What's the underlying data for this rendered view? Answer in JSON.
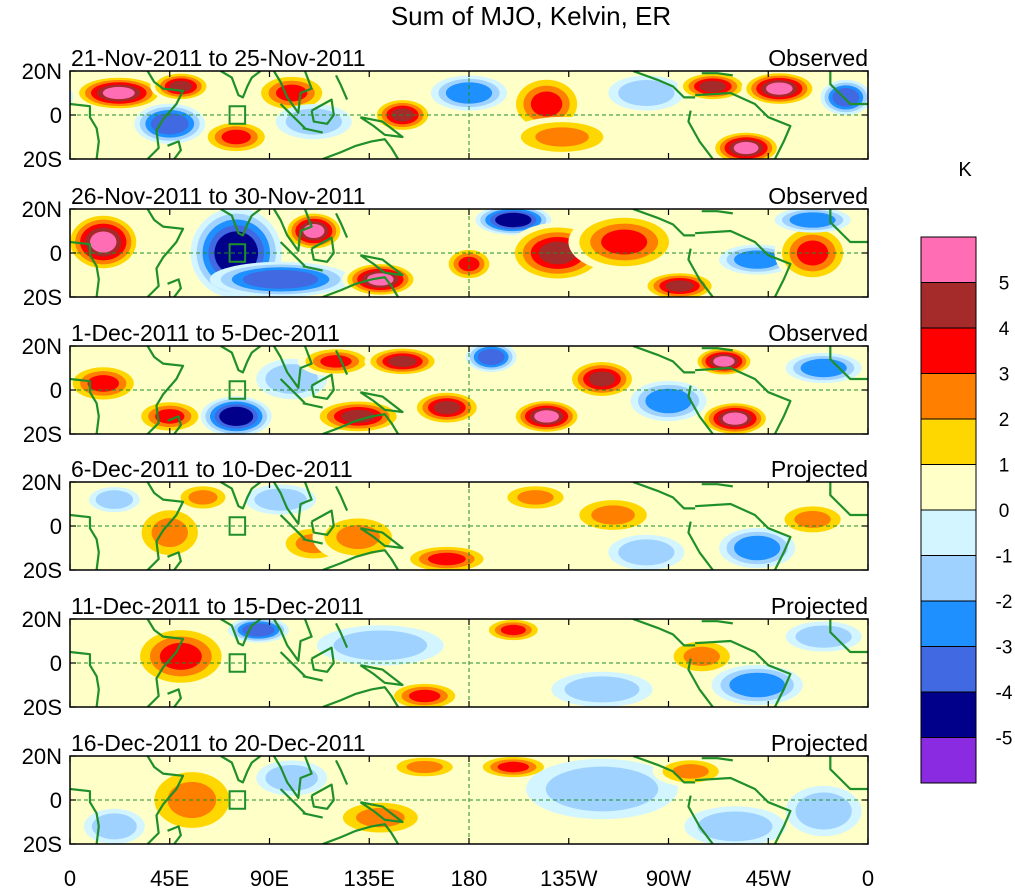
{
  "chart_data": {
    "type": "heatmap",
    "title": "Sum of MJO, Kelvin, ER",
    "panels": [
      {
        "date_range": "21-Nov-2011 to 25-Nov-2011",
        "status": "Observed"
      },
      {
        "date_range": "26-Nov-2011 to 30-Nov-2011",
        "status": "Observed"
      },
      {
        "date_range": "1-Dec-2011 to 5-Dec-2011",
        "status": "Observed"
      },
      {
        "date_range": "6-Dec-2011 to 10-Dec-2011",
        "status": "Projected"
      },
      {
        "date_range": "11-Dec-2011 to 15-Dec-2011",
        "status": "Projected"
      },
      {
        "date_range": "16-Dec-2011 to 20-Dec-2011",
        "status": "Projected"
      }
    ],
    "x_ticks": [
      "0",
      "45E",
      "90E",
      "135E",
      "180",
      "135W",
      "90W",
      "45W",
      "0"
    ],
    "x_tick_values": [
      0,
      45,
      90,
      135,
      180,
      225,
      270,
      315,
      360
    ],
    "y_ticks": [
      "20N",
      "0",
      "20S"
    ],
    "y_tick_values": [
      20,
      0,
      -20
    ],
    "xlim": [
      0,
      360
    ],
    "ylim": [
      -20,
      20
    ],
    "colorbar": {
      "unit": "K",
      "tick_labels": [
        "5",
        "4",
        "3",
        "2",
        "1",
        "0",
        "-1",
        "-2",
        "-3",
        "-4",
        "-5"
      ],
      "colors": [
        "#ff6eb4",
        "#a52a2a",
        "#ff0000",
        "#ff7f00",
        "#ffd700",
        "#ffffc8",
        "#d2f5ff",
        "#a0d2ff",
        "#1e90ff",
        "#4169e1",
        "#00008b",
        "#8a2be2"
      ]
    },
    "anomaly_blobs": [
      [
        {
          "lon": 22,
          "lat": 10,
          "w": 18,
          "h": 7,
          "v": 5
        },
        {
          "lon": 50,
          "lat": 13,
          "w": 12,
          "h": 6,
          "v": 4
        },
        {
          "lon": 45,
          "lat": -4,
          "w": 14,
          "h": 8,
          "v": -4
        },
        {
          "lon": 75,
          "lat": -10,
          "w": 14,
          "h": 7,
          "v": 3
        },
        {
          "lon": 100,
          "lat": 10,
          "w": 15,
          "h": 8,
          "v": 3
        },
        {
          "lon": 110,
          "lat": -3,
          "w": 15,
          "h": 7,
          "v": -2
        },
        {
          "lon": 150,
          "lat": 0,
          "w": 12,
          "h": 7,
          "v": 4
        },
        {
          "lon": 180,
          "lat": 10,
          "w": 15,
          "h": 7,
          "v": -3
        },
        {
          "lon": 215,
          "lat": 5,
          "w": 15,
          "h": 12,
          "v": 3
        },
        {
          "lon": 222,
          "lat": -10,
          "w": 22,
          "h": 8,
          "v": 2
        },
        {
          "lon": 260,
          "lat": 10,
          "w": 15,
          "h": 7,
          "v": -2
        },
        {
          "lon": 290,
          "lat": 13,
          "w": 14,
          "h": 6,
          "v": 4
        },
        {
          "lon": 305,
          "lat": -15,
          "w": 14,
          "h": 7,
          "v": 5
        },
        {
          "lon": 320,
          "lat": 12,
          "w": 15,
          "h": 7,
          "v": 5
        },
        {
          "lon": 350,
          "lat": 8,
          "w": 10,
          "h": 7,
          "v": -4
        }
      ],
      [
        {
          "lon": 15,
          "lat": 5,
          "w": 15,
          "h": 12,
          "v": 5
        },
        {
          "lon": 75,
          "lat": 0,
          "w": 18,
          "h": 18,
          "v": -5
        },
        {
          "lon": 95,
          "lat": -12,
          "w": 28,
          "h": 7,
          "v": -4
        },
        {
          "lon": 110,
          "lat": 10,
          "w": 12,
          "h": 8,
          "v": 5
        },
        {
          "lon": 140,
          "lat": -12,
          "w": 15,
          "h": 7,
          "v": 5
        },
        {
          "lon": 200,
          "lat": 15,
          "w": 15,
          "h": 6,
          "v": -5
        },
        {
          "lon": 220,
          "lat": 0,
          "w": 20,
          "h": 12,
          "v": 4
        },
        {
          "lon": 250,
          "lat": 5,
          "w": 22,
          "h": 12,
          "v": 3
        },
        {
          "lon": 275,
          "lat": -15,
          "w": 15,
          "h": 6,
          "v": 4
        },
        {
          "lon": 310,
          "lat": -3,
          "w": 15,
          "h": 6,
          "v": -3
        },
        {
          "lon": 335,
          "lat": 0,
          "w": 15,
          "h": 12,
          "v": 3
        },
        {
          "lon": 335,
          "lat": 15,
          "w": 15,
          "h": 5,
          "v": -3
        },
        {
          "lon": 180,
          "lat": -5,
          "w": 10,
          "h": 7,
          "v": 3
        }
      ],
      [
        {
          "lon": 15,
          "lat": 3,
          "w": 15,
          "h": 8,
          "v": 3
        },
        {
          "lon": 45,
          "lat": -12,
          "w": 14,
          "h": 7,
          "v": 3
        },
        {
          "lon": 75,
          "lat": -12,
          "w": 14,
          "h": 8,
          "v": -5
        },
        {
          "lon": 100,
          "lat": 5,
          "w": 14,
          "h": 8,
          "v": -2
        },
        {
          "lon": 120,
          "lat": 13,
          "w": 15,
          "h": 6,
          "v": 3
        },
        {
          "lon": 150,
          "lat": 13,
          "w": 15,
          "h": 6,
          "v": 4
        },
        {
          "lon": 130,
          "lat": -12,
          "w": 18,
          "h": 7,
          "v": 4
        },
        {
          "lon": 170,
          "lat": -8,
          "w": 14,
          "h": 7,
          "v": 4
        },
        {
          "lon": 190,
          "lat": 15,
          "w": 10,
          "h": 6,
          "v": -4
        },
        {
          "lon": 215,
          "lat": -12,
          "w": 14,
          "h": 7,
          "v": 5
        },
        {
          "lon": 240,
          "lat": 5,
          "w": 14,
          "h": 8,
          "v": 4
        },
        {
          "lon": 270,
          "lat": -5,
          "w": 15,
          "h": 8,
          "v": -3
        },
        {
          "lon": 295,
          "lat": 13,
          "w": 12,
          "h": 6,
          "v": 5
        },
        {
          "lon": 300,
          "lat": -13,
          "w": 14,
          "h": 7,
          "v": 5
        },
        {
          "lon": 340,
          "lat": 10,
          "w": 15,
          "h": 6,
          "v": -3
        }
      ],
      [
        {
          "lon": 45,
          "lat": -3,
          "w": 15,
          "h": 12,
          "v": 2
        },
        {
          "lon": 60,
          "lat": 13,
          "w": 12,
          "h": 6,
          "v": 2
        },
        {
          "lon": 95,
          "lat": 12,
          "w": 14,
          "h": 6,
          "v": -2
        },
        {
          "lon": 110,
          "lat": -8,
          "w": 15,
          "h": 8,
          "v": 2
        },
        {
          "lon": 130,
          "lat": -5,
          "w": 18,
          "h": 10,
          "v": 2
        },
        {
          "lon": 170,
          "lat": -15,
          "w": 18,
          "h": 6,
          "v": 3
        },
        {
          "lon": 210,
          "lat": 13,
          "w": 15,
          "h": 6,
          "v": 2
        },
        {
          "lon": 245,
          "lat": 5,
          "w": 18,
          "h": 8,
          "v": 2
        },
        {
          "lon": 260,
          "lat": -12,
          "w": 15,
          "h": 7,
          "v": -2
        },
        {
          "lon": 310,
          "lat": -10,
          "w": 15,
          "h": 8,
          "v": -3
        },
        {
          "lon": 335,
          "lat": 3,
          "w": 15,
          "h": 7,
          "v": 2
        },
        {
          "lon": 20,
          "lat": 12,
          "w": 10,
          "h": 5,
          "v": -2
        }
      ],
      [
        {
          "lon": 50,
          "lat": 3,
          "w": 20,
          "h": 13,
          "v": 3
        },
        {
          "lon": 85,
          "lat": 15,
          "w": 12,
          "h": 5,
          "v": -4
        },
        {
          "lon": 140,
          "lat": 8,
          "w": 25,
          "h": 8,
          "v": -2
        },
        {
          "lon": 160,
          "lat": -15,
          "w": 15,
          "h": 6,
          "v": 3
        },
        {
          "lon": 200,
          "lat": 15,
          "w": 12,
          "h": 5,
          "v": 3
        },
        {
          "lon": 240,
          "lat": -12,
          "w": 20,
          "h": 7,
          "v": -2
        },
        {
          "lon": 285,
          "lat": 3,
          "w": 15,
          "h": 8,
          "v": 2
        },
        {
          "lon": 310,
          "lat": -10,
          "w": 18,
          "h": 8,
          "v": -3
        },
        {
          "lon": 340,
          "lat": 12,
          "w": 15,
          "h": 6,
          "v": -2
        }
      ],
      [
        {
          "lon": 55,
          "lat": 0,
          "w": 20,
          "h": 15,
          "v": 2
        },
        {
          "lon": 100,
          "lat": 10,
          "w": 14,
          "h": 7,
          "v": -2
        },
        {
          "lon": 140,
          "lat": -8,
          "w": 20,
          "h": 8,
          "v": 2
        },
        {
          "lon": 160,
          "lat": 15,
          "w": 15,
          "h": 5,
          "v": 2
        },
        {
          "lon": 200,
          "lat": 15,
          "w": 15,
          "h": 5,
          "v": 3
        },
        {
          "lon": 240,
          "lat": 5,
          "w": 30,
          "h": 12,
          "v": -2
        },
        {
          "lon": 280,
          "lat": 13,
          "w": 15,
          "h": 6,
          "v": 2
        },
        {
          "lon": 300,
          "lat": -12,
          "w": 20,
          "h": 8,
          "v": -2
        },
        {
          "lon": 340,
          "lat": -5,
          "w": 15,
          "h": 10,
          "v": -2
        },
        {
          "lon": 20,
          "lat": -12,
          "w": 12,
          "h": 7,
          "v": -2
        }
      ]
    ],
    "regions": {
      "box": [
        {
          "lon": 72,
          "lat": 4
        },
        {
          "lon": 79,
          "lat": 4
        },
        {
          "lon": 79,
          "lat": -4
        },
        {
          "lon": 72,
          "lat": -4
        }
      ],
      "coast_east_africa": [
        {
          "lon": 35,
          "lat": 20
        },
        {
          "lon": 38,
          "lat": 15
        },
        {
          "lon": 42,
          "lat": 12
        },
        {
          "lon": 51,
          "lat": 11
        },
        {
          "lon": 48,
          "lat": 5
        },
        {
          "lon": 42,
          "lat": -2
        },
        {
          "lon": 39,
          "lat": -7
        },
        {
          "lon": 40,
          "lat": -15
        },
        {
          "lon": 35,
          "lat": -20
        }
      ],
      "coast_india": [
        {
          "lon": 68,
          "lat": 20
        },
        {
          "lon": 73,
          "lat": 17
        },
        {
          "lon": 76,
          "lat": 9
        },
        {
          "lon": 78,
          "lat": 8
        },
        {
          "lon": 80,
          "lat": 13
        },
        {
          "lon": 82,
          "lat": 17
        },
        {
          "lon": 86,
          "lat": 20
        }
      ],
      "coast_se_asia": [
        {
          "lon": 92,
          "lat": 20
        },
        {
          "lon": 95,
          "lat": 15
        },
        {
          "lon": 98,
          "lat": 8
        },
        {
          "lon": 103,
          "lat": 1
        },
        {
          "lon": 104,
          "lat": 10
        },
        {
          "lon": 109,
          "lat": 12
        },
        {
          "lon": 106,
          "lat": 20
        }
      ],
      "coast_sumatra": [
        {
          "lon": 95,
          "lat": 5
        },
        {
          "lon": 106,
          "lat": -6
        }
      ],
      "coast_borneo": [
        {
          "lon": 109,
          "lat": 2
        },
        {
          "lon": 118,
          "lat": 7
        },
        {
          "lon": 119,
          "lat": 0
        },
        {
          "lon": 116,
          "lat": -4
        },
        {
          "lon": 110,
          "lat": -3
        },
        {
          "lon": 109,
          "lat": 2
        }
      ],
      "coast_java": [
        {
          "lon": 105,
          "lat": -6
        },
        {
          "lon": 114,
          "lat": -8
        }
      ],
      "coast_new_guinea": [
        {
          "lon": 131,
          "lat": -1
        },
        {
          "lon": 141,
          "lat": -3
        },
        {
          "lon": 150,
          "lat": -10
        },
        {
          "lon": 142,
          "lat": -9
        },
        {
          "lon": 137,
          "lat": -5
        },
        {
          "lon": 131,
          "lat": -1
        }
      ],
      "coast_australia": [
        {
          "lon": 114,
          "lat": -20
        },
        {
          "lon": 122,
          "lat": -17
        },
        {
          "lon": 129,
          "lat": -14
        },
        {
          "lon": 136,
          "lat": -12
        },
        {
          "lon": 142,
          "lat": -11
        },
        {
          "lon": 145,
          "lat": -15
        },
        {
          "lon": 148,
          "lat": -20
        }
      ],
      "coast_philippines": [
        {
          "lon": 120,
          "lat": 18
        },
        {
          "lon": 122,
          "lat": 14
        },
        {
          "lon": 125,
          "lat": 7
        }
      ],
      "coast_central_america": [
        {
          "lon": 254,
          "lat": 20
        },
        {
          "lon": 265,
          "lat": 16
        },
        {
          "lon": 272,
          "lat": 13
        },
        {
          "lon": 277,
          "lat": 8
        },
        {
          "lon": 282,
          "lat": 8
        }
      ],
      "coast_south_america": [
        {
          "lon": 280,
          "lat": 2
        },
        {
          "lon": 279,
          "lat": -3
        },
        {
          "lon": 284,
          "lat": -12
        },
        {
          "lon": 290,
          "lat": -20
        }
      ],
      "coast_brazil": [
        {
          "lon": 282,
          "lat": 9
        },
        {
          "lon": 298,
          "lat": 10
        },
        {
          "lon": 309,
          "lat": 5
        },
        {
          "lon": 315,
          "lat": -1
        },
        {
          "lon": 325,
          "lat": -5
        },
        {
          "lon": 322,
          "lat": -12
        },
        {
          "lon": 318,
          "lat": -20
        }
      ],
      "coast_caribbean": [
        {
          "lon": 285,
          "lat": 19
        },
        {
          "lon": 292,
          "lat": 19
        },
        {
          "lon": 299,
          "lat": 18
        }
      ],
      "coast_west_africa": [
        {
          "lon": 343,
          "lat": 20
        },
        {
          "lon": 343,
          "lat": 14
        },
        {
          "lon": 347,
          "lat": 10
        },
        {
          "lon": 352,
          "lat": 5
        },
        {
          "lon": 360,
          "lat": 5
        }
      ],
      "coast_west_africa_2": [
        {
          "lon": 0,
          "lat": 5
        },
        {
          "lon": 9,
          "lat": 4
        },
        {
          "lon": 9,
          "lat": -1
        },
        {
          "lon": 12,
          "lat": -6
        },
        {
          "lon": 13,
          "lat": -12
        },
        {
          "lon": 12,
          "lat": -20
        }
      ],
      "coast_madagascar": [
        {
          "lon": 44,
          "lat": -14
        },
        {
          "lon": 49,
          "lat": -12
        },
        {
          "lon": 50,
          "lat": -16
        },
        {
          "lon": 47,
          "lat": -20
        }
      ]
    }
  }
}
